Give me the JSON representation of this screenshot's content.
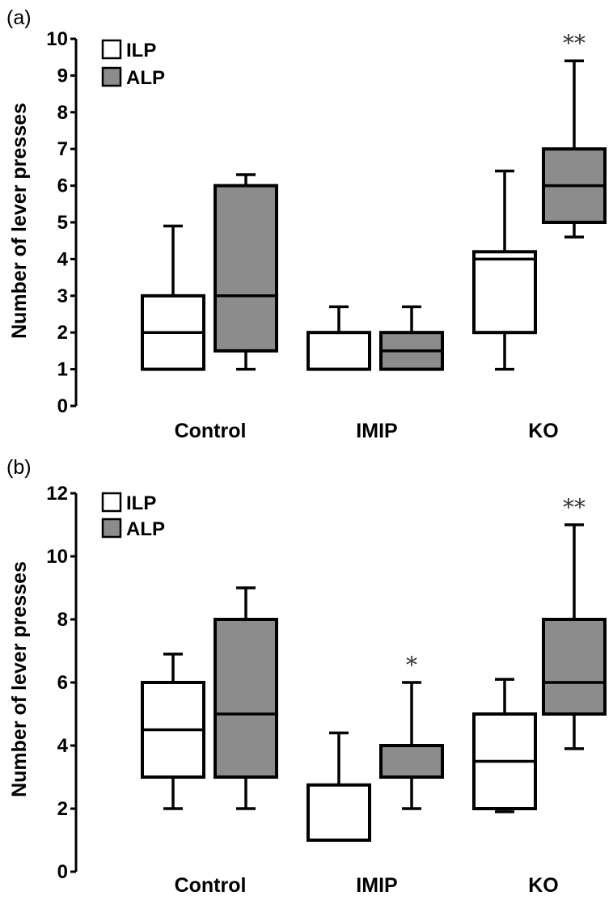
{
  "chart_data": [
    {
      "type": "box",
      "panel_label": "(a)",
      "ylabel": "Number of lever presses",
      "ylim": [
        0,
        10
      ],
      "yticks": [
        "0",
        "1",
        "2",
        "3",
        "4",
        "5",
        "6",
        "7",
        "8",
        "9",
        "10"
      ],
      "categories": [
        "Control",
        "IMIP",
        "KO"
      ],
      "legend": {
        "placement": "top-left",
        "entries": [
          {
            "name": "ILP",
            "color": "#ffffff"
          },
          {
            "name": "ALP",
            "color": "#8c8c8c"
          }
        ]
      },
      "series": [
        {
          "name": "ILP",
          "color": "#ffffff",
          "boxes": [
            {
              "whisker_low": 1,
              "q1": 1,
              "median": 2,
              "q3": 3,
              "whisker_high": 4.9
            },
            {
              "whisker_low": 1,
              "q1": 1,
              "median": null,
              "q3": 2,
              "whisker_high": 2.7
            },
            {
              "whisker_low": 1,
              "q1": 2,
              "median": 4,
              "q3": 4.2,
              "whisker_high": 6.4
            }
          ]
        },
        {
          "name": "ALP",
          "color": "#8c8c8c",
          "boxes": [
            {
              "whisker_low": 1,
              "q1": 1.5,
              "median": 3,
              "q3": 6,
              "whisker_high": 6.3
            },
            {
              "whisker_low": 1,
              "q1": 1,
              "median": 1.5,
              "q3": 2,
              "whisker_high": 2.7
            },
            {
              "whisker_low": 4.6,
              "q1": 5,
              "median": 6,
              "q3": 7,
              "whisker_high": 9.4
            }
          ]
        }
      ],
      "annotations": [
        {
          "text": "**",
          "series": 1,
          "category": 2
        }
      ]
    },
    {
      "type": "box",
      "panel_label": "(b)",
      "ylabel": "Number of lever presses",
      "ylim": [
        0,
        12
      ],
      "yticks": [
        "0",
        "2",
        "4",
        "6",
        "8",
        "10",
        "12"
      ],
      "categories": [
        "Control",
        "IMIP",
        "KO"
      ],
      "legend": {
        "placement": "top-left",
        "entries": [
          {
            "name": "ILP",
            "color": "#ffffff"
          },
          {
            "name": "ALP",
            "color": "#8c8c8c"
          }
        ]
      },
      "series": [
        {
          "name": "ILP",
          "color": "#ffffff",
          "boxes": [
            {
              "whisker_low": 2,
              "q1": 3,
              "median": 4.5,
              "q3": 6,
              "whisker_high": 6.9
            },
            {
              "whisker_low": 1,
              "q1": 1,
              "median": null,
              "q3": 2.75,
              "whisker_high": 4.4
            },
            {
              "whisker_low": 1.9,
              "q1": 2,
              "median": 3.5,
              "q3": 5,
              "whisker_high": 6.1
            }
          ]
        },
        {
          "name": "ALP",
          "color": "#8c8c8c",
          "boxes": [
            {
              "whisker_low": 2,
              "q1": 3,
              "median": 5,
              "q3": 8,
              "whisker_high": 9
            },
            {
              "whisker_low": 2,
              "q1": 3,
              "median": null,
              "q3": 4,
              "whisker_high": 6
            },
            {
              "whisker_low": 3.9,
              "q1": 5,
              "median": 6,
              "q3": 8,
              "whisker_high": 11
            }
          ]
        }
      ],
      "annotations": [
        {
          "text": "*",
          "series": 1,
          "category": 1
        },
        {
          "text": "**",
          "series": 1,
          "category": 2
        }
      ]
    }
  ]
}
